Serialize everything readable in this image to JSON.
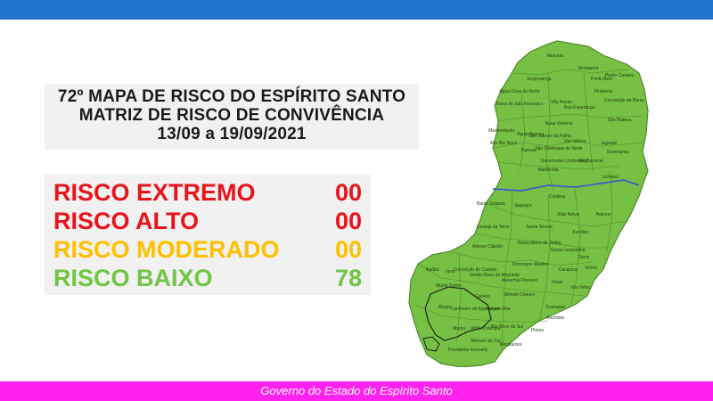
{
  "title": {
    "line1": "72º MAPA DE RISCO DO ESPÍRITO SANTO",
    "line2": "MATRIZ DE RISCO DE CONVIVÊNCIA",
    "line3": "13/09 a 19/09/2021"
  },
  "risks": [
    {
      "label": "RISCO EXTREMO",
      "value": "00",
      "color": "#e8141c"
    },
    {
      "label": "RISCO ALTO",
      "value": "00",
      "color": "#e8141c"
    },
    {
      "label": "RISCO MODERADO",
      "value": "00",
      "color": "#ffc000"
    },
    {
      "label": "RISCO BAIXO",
      "value": "78",
      "color": "#70c544"
    }
  ],
  "map": {
    "fill_color": "#76c043",
    "border_color": "#4e8a2e",
    "municipalities": [
      "Mucurici",
      "Montanha",
      "Ponto Belo",
      "Pedro Canário",
      "Ecoporanga",
      "Pinheiros",
      "Conceição da Barra",
      "Água Doce do Norte",
      "Barra de São Francisco",
      "Vila Pavão",
      "Boa Esperança",
      "São Mateus",
      "Nova Venécia",
      "Mantenópolis",
      "Águia Branca",
      "São Gabriel da Palha",
      "Vila Valério",
      "Jaguaré",
      "Alto Rio Novo",
      "Pancas",
      "São Domingos do Norte",
      "Governador Lindenberg",
      "Rio Bananal",
      "Sooretama",
      "Linhares",
      "Marilândia",
      "Colatina",
      "Baixo Guandu",
      "Itaguaçu",
      "João Neiva",
      "Aracruz",
      "Laranja da Terra",
      "Santa Teresa",
      "Fundão",
      "Afonso Cláudio",
      "Santa Maria de Jetibá",
      "Santa Leopoldina",
      "Serra",
      "Domingos Martins",
      "Cariacica",
      "Vitória",
      "Ibatiba",
      "Iúna",
      "Conceição do Castelo",
      "Venda Nova do Imigrante",
      "Marechal Floriano",
      "Viana",
      "Vila Velha",
      "Muniz Freire",
      "Castelo",
      "Alfredo Chaves",
      "Guarapari",
      "Alegre",
      "Cachoeiro de Itapemirim",
      "Vargem Alta",
      "Anchieta",
      "Muqui",
      "Atílio Vivácqua",
      "Rio Novo do Sul",
      "Piúma",
      "Mimoso do Sul",
      "Presidente Kennedy",
      "Marataízes"
    ]
  },
  "footer": {
    "text": "Governo do Estado do Espírito Santo",
    "bar_color": "#ff22ee"
  },
  "header": {
    "bar_color": "#1f74c9"
  }
}
